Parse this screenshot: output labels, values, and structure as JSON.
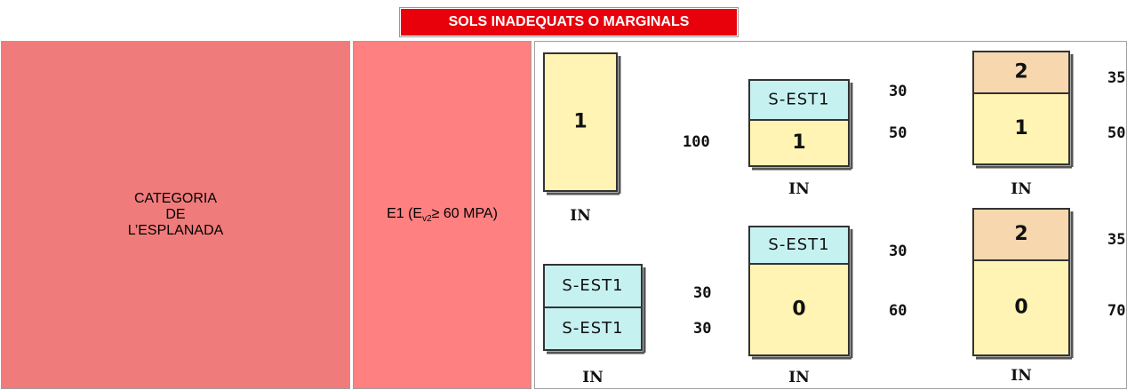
{
  "header": {
    "title": "SOLS INADEQUATS  O MARGINALS"
  },
  "category": {
    "lines": [
      "CATEGORIA",
      "DE",
      "L’ESPLANADA"
    ]
  },
  "grade": {
    "prefix": "E1 (E",
    "subscript": "v2",
    "suffix": "≥ 60 MPA)"
  },
  "sections": [
    {
      "layers": [
        {
          "label": "1",
          "thickness": 100,
          "color": "#fff4b3"
        }
      ],
      "base": "IN"
    },
    {
      "layers": [
        {
          "label": "S-EST1",
          "thickness": 30,
          "color": "#c6f1f1"
        },
        {
          "label": "1",
          "thickness": 50,
          "color": "#fff4b3"
        }
      ],
      "base": "IN"
    },
    {
      "layers": [
        {
          "label": "2",
          "thickness": 35,
          "color": "#f6d7ae"
        },
        {
          "label": "1",
          "thickness": 50,
          "color": "#fff4b3"
        }
      ],
      "base": "IN"
    },
    {
      "layers": [
        {
          "label": "S-EST1",
          "thickness": 30,
          "color": "#c6f1f1"
        },
        {
          "label": "S-EST1",
          "thickness": 30,
          "color": "#c6f1f1"
        }
      ],
      "base": "IN"
    },
    {
      "layers": [
        {
          "label": "S-EST1",
          "thickness": 30,
          "color": "#c6f1f1"
        },
        {
          "label": "0",
          "thickness": 60,
          "color": "#fff4b3"
        }
      ],
      "base": "IN"
    },
    {
      "layers": [
        {
          "label": "2",
          "thickness": 35,
          "color": "#f6d7ae"
        },
        {
          "label": "0",
          "thickness": 70,
          "color": "#fff4b3"
        }
      ],
      "base": "IN"
    }
  ]
}
